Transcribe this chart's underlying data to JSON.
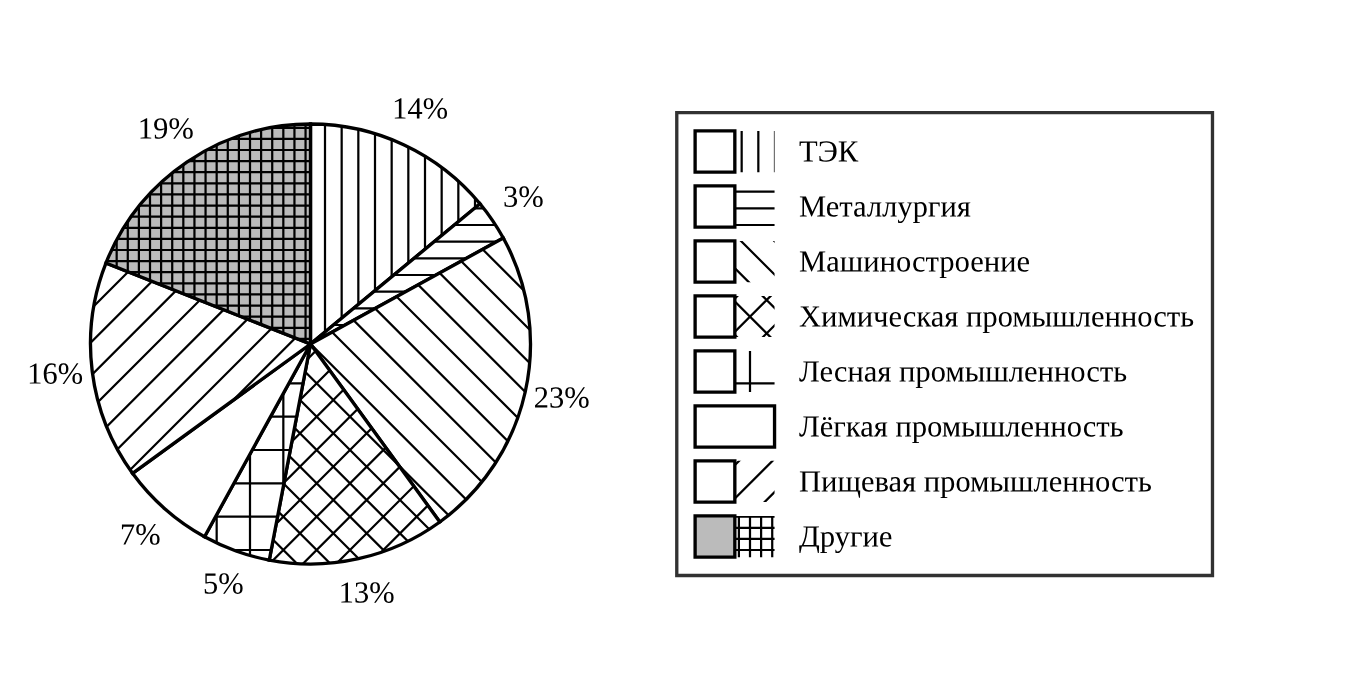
{
  "chart_data": {
    "type": "pie",
    "categories": [
      "ТЭК",
      "Металлургия",
      "Машиностроение",
      "Химическая промышленность",
      "Лесная промышленность",
      "Лёгкая промышленность",
      "Пищевая промышленность",
      "Другие"
    ],
    "values": [
      14,
      3,
      23,
      13,
      5,
      7,
      16,
      19
    ],
    "value_labels": [
      "14%",
      "3%",
      "23%",
      "13%",
      "5%",
      "7%",
      "16%",
      "19%"
    ],
    "colors": [
      "#ffffff",
      "#ffffff",
      "#ffffff",
      "#ffffff",
      "#ffffff",
      "#ffffff",
      "#ffffff",
      "#bbbbbb"
    ],
    "legend": "right"
  }
}
